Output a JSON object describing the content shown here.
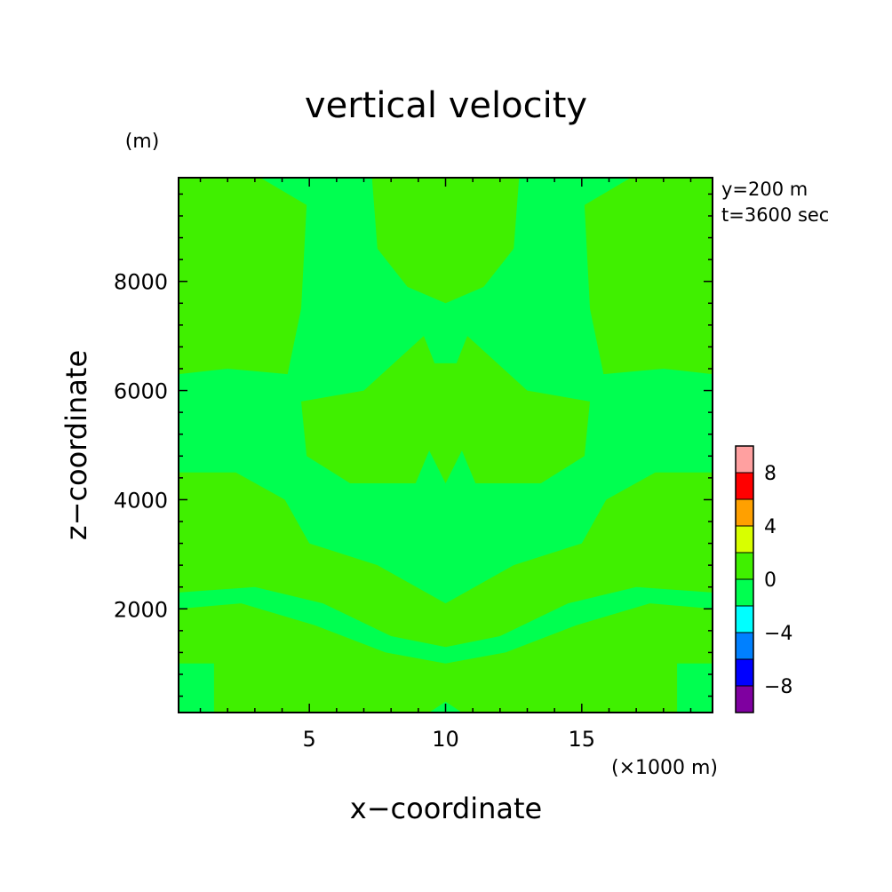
{
  "chart_data": {
    "type": "heatmap",
    "title": "vertical velocity",
    "xlabel": "x−coordinate",
    "ylabel": "z−coordinate",
    "x_unit_label": "(×1000 m)",
    "y_unit_label": "(m)",
    "annotations": [
      "y=200 m",
      "t=3600 sec"
    ],
    "xlim": [
      0.2,
      19.8
    ],
    "ylim": [
      100,
      9900
    ],
    "xticks": [
      5,
      10,
      15
    ],
    "xtick_labels": [
      "5",
      "10",
      "15"
    ],
    "yticks": [
      2000,
      4000,
      6000,
      8000
    ],
    "ytick_labels": [
      "2000",
      "4000",
      "6000",
      "8000"
    ],
    "colorbar": {
      "levels": [
        -10,
        -8,
        -6,
        -4,
        -2,
        0,
        2,
        4,
        6,
        8,
        10
      ],
      "tick_values": [
        -8,
        -4,
        0,
        4,
        8
      ],
      "tick_labels": [
        "−8",
        "−4",
        "0",
        "4",
        "8"
      ],
      "colors": [
        "#7f00a0",
        "#0000ff",
        "#0080ff",
        "#00ffff",
        "#00ff50",
        "#40f000",
        "#d8ff00",
        "#ffa000",
        "#ff0000",
        "#ffa0a0"
      ]
    },
    "field_colors": {
      "background_level": "#00ff50",
      "positive_level": "#40f000"
    },
    "regions_positive_0_to_2": [
      {
        "name": "upper-left",
        "points": [
          [
            0.2,
            9900
          ],
          [
            3.2,
            9900
          ],
          [
            4.9,
            9400
          ],
          [
            4.7,
            7500
          ],
          [
            4.2,
            6300
          ],
          [
            2,
            6400
          ],
          [
            0.2,
            6300
          ]
        ]
      },
      {
        "name": "upper-right",
        "points": [
          [
            19.8,
            9900
          ],
          [
            16.8,
            9900
          ],
          [
            15.1,
            9400
          ],
          [
            15.3,
            7500
          ],
          [
            15.8,
            6300
          ],
          [
            18,
            6400
          ],
          [
            19.8,
            6300
          ]
        ]
      },
      {
        "name": "upper-center",
        "points": [
          [
            7.3,
            9900
          ],
          [
            12.7,
            9900
          ],
          [
            12.5,
            8600
          ],
          [
            11.4,
            7900
          ],
          [
            10,
            7600
          ],
          [
            8.6,
            7900
          ],
          [
            7.5,
            8600
          ]
        ]
      },
      {
        "name": "middle",
        "points": [
          [
            4.7,
            5800
          ],
          [
            7,
            6000
          ],
          [
            9.2,
            7000
          ],
          [
            9.6,
            6500
          ],
          [
            10.4,
            6500
          ],
          [
            10.8,
            7000
          ],
          [
            13,
            6000
          ],
          [
            15.3,
            5800
          ],
          [
            15.1,
            4800
          ],
          [
            13.5,
            4300
          ],
          [
            11.1,
            4300
          ],
          [
            10.6,
            4900
          ],
          [
            10,
            4300
          ],
          [
            9.4,
            4900
          ],
          [
            8.9,
            4300
          ],
          [
            6.5,
            4300
          ],
          [
            4.9,
            4800
          ]
        ]
      },
      {
        "name": "left-mid",
        "points": [
          [
            0.2,
            4500
          ],
          [
            2.3,
            4500
          ],
          [
            4.1,
            4000
          ],
          [
            5,
            3200
          ],
          [
            7.5,
            2800
          ],
          [
            10,
            2100
          ],
          [
            12.5,
            2800
          ],
          [
            15,
            3200
          ],
          [
            15.9,
            4000
          ],
          [
            17.7,
            4500
          ],
          [
            19.8,
            4500
          ],
          [
            19.8,
            2300
          ],
          [
            17,
            2400
          ],
          [
            14.5,
            2100
          ],
          [
            12,
            1500
          ],
          [
            10,
            1300
          ],
          [
            8,
            1500
          ],
          [
            5.5,
            2100
          ],
          [
            3,
            2400
          ],
          [
            0.2,
            2300
          ]
        ]
      },
      {
        "name": "bottom",
        "points": [
          [
            0.2,
            2000
          ],
          [
            2.5,
            2100
          ],
          [
            5.2,
            1700
          ],
          [
            7.8,
            1200
          ],
          [
            10,
            1000
          ],
          [
            12.2,
            1200
          ],
          [
            14.8,
            1700
          ],
          [
            17.5,
            2100
          ],
          [
            19.8,
            2000
          ],
          [
            19.8,
            1000
          ],
          [
            18.5,
            1000
          ],
          [
            18.5,
            100
          ],
          [
            12,
            100
          ],
          [
            10.6,
            100
          ],
          [
            10,
            300
          ],
          [
            9.4,
            100
          ],
          [
            1.5,
            100
          ],
          [
            1.5,
            1000
          ],
          [
            0.2,
            1000
          ]
        ]
      }
    ]
  }
}
